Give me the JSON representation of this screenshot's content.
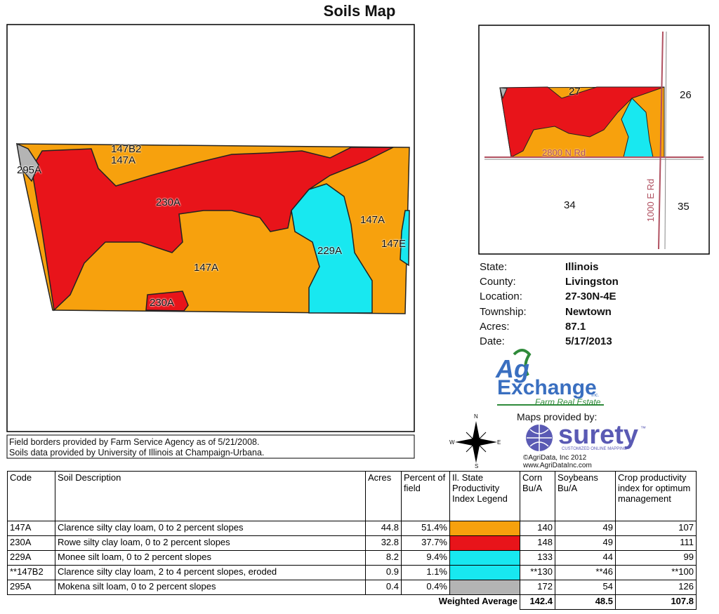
{
  "title": "Soils Map",
  "map_labels": [
    "147B2",
    "147A",
    "295A",
    "230A",
    "147A",
    "147E",
    "229A",
    "147A",
    "230A"
  ],
  "locator_labels": [
    "27",
    "26",
    "2800 N Rd",
    "34",
    "35",
    "1000 E Rd"
  ],
  "info": [
    {
      "label": "State:",
      "value": "Illinois"
    },
    {
      "label": "County:",
      "value": "Livingston"
    },
    {
      "label": "Location:",
      "value": "27-30N-4E"
    },
    {
      "label": "Township:",
      "value": "Newtown"
    },
    {
      "label": "Acres:",
      "value": "87.1"
    },
    {
      "label": "Date:",
      "value": "5/17/2013"
    }
  ],
  "logo": {
    "part1": "Ag",
    "part2": "Exchange",
    "inc": "Inc.",
    "sub": "Farm Real Estate"
  },
  "provided": "Maps provided by:",
  "surety": {
    "name": "surety",
    "tm": "™",
    "sub": "CUSTOMIZED ONLINE MAPPING"
  },
  "copyright": "©AgriData, Inc 2012",
  "url": "www.AgriDataInc.com",
  "compass": {
    "n": "N",
    "s": "S",
    "e": "E",
    "w": "W"
  },
  "notes": [
    "Field borders provided by Farm Service Agency as of 5/21/2008.",
    "Soils data provided by University of Illinois at Champaign-Urbana."
  ],
  "table": {
    "headers": [
      "Code",
      "Soil Description",
      "Acres",
      "Percent of field",
      "Il. State Productivity Index Legend",
      "Corn Bu/A",
      "Soybeans Bu/A",
      "Crop productivity index for optimum management"
    ],
    "rows": [
      {
        "code": "147A",
        "desc": "Clarence silty clay loam, 0 to 2 percent slopes",
        "acres": "44.8",
        "percent": "51.4%",
        "color": "#f7a10d",
        "corn": "140",
        "soy": "49",
        "cpi": "107"
      },
      {
        "code": "230A",
        "desc": "Rowe silty clay loam, 0 to 2 percent slopes",
        "acres": "32.8",
        "percent": "37.7%",
        "color": "#e8141a",
        "corn": "148",
        "soy": "49",
        "cpi": "111"
      },
      {
        "code": "229A",
        "desc": "Monee silt loam, 0 to 2 percent slopes",
        "acres": "8.2",
        "percent": "9.4%",
        "color": "#18e8f0",
        "corn": "133",
        "soy": "44",
        "cpi": "99"
      },
      {
        "code": "**147B2",
        "desc": "Clarence silty clay loam, 2 to 4 percent slopes, eroded",
        "acres": "0.9",
        "percent": "1.1%",
        "color": "#18e8f0",
        "corn": "**130",
        "soy": "**46",
        "cpi": "**100"
      },
      {
        "code": "295A",
        "desc": "Mokena silt loam, 0 to 2 percent slopes",
        "acres": "0.4",
        "percent": "0.4%",
        "color": "#b4b4b4",
        "corn": "172",
        "soy": "54",
        "cpi": "126"
      }
    ],
    "weighted": {
      "label": "Weighted Average",
      "corn": "142.4",
      "soy": "48.5",
      "cpi": "107.8"
    }
  }
}
